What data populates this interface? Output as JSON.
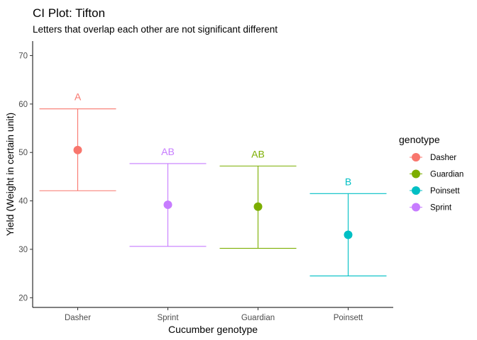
{
  "chart_data": {
    "type": "errorbar",
    "title": "CI Plot: Tifton",
    "subtitle": "Letters that overlap each other are not significant different",
    "xlabel": "Cucumber genotype",
    "ylabel": "Yield (Weight in certain unit)",
    "ylim": [
      18,
      73
    ],
    "yticks": [
      20,
      30,
      40,
      50,
      60,
      70
    ],
    "categories": [
      "Dasher",
      "Sprint",
      "Guardian",
      "Poinsett"
    ],
    "points": [
      {
        "genotype": "Dasher",
        "mean": 50.5,
        "lower": 42.1,
        "upper": 59.0,
        "letter": "A",
        "color": "#F8766D"
      },
      {
        "genotype": "Sprint",
        "mean": 39.2,
        "lower": 30.6,
        "upper": 47.7,
        "letter": "AB",
        "color": "#C77CFF"
      },
      {
        "genotype": "Guardian",
        "mean": 38.8,
        "lower": 30.2,
        "upper": 47.2,
        "letter": "AB",
        "color": "#7CAE00"
      },
      {
        "genotype": "Poinsett",
        "mean": 33.0,
        "lower": 24.5,
        "upper": 41.5,
        "letter": "B",
        "color": "#00BFC4"
      }
    ],
    "legend": {
      "title": "genotype",
      "placement": "right",
      "entries": [
        {
          "label": "Dasher",
          "color": "#F8766D"
        },
        {
          "label": "Guardian",
          "color": "#7CAE00"
        },
        {
          "label": "Poinsett",
          "color": "#00BFC4"
        },
        {
          "label": "Sprint",
          "color": "#C77CFF"
        }
      ]
    },
    "grid": false
  }
}
